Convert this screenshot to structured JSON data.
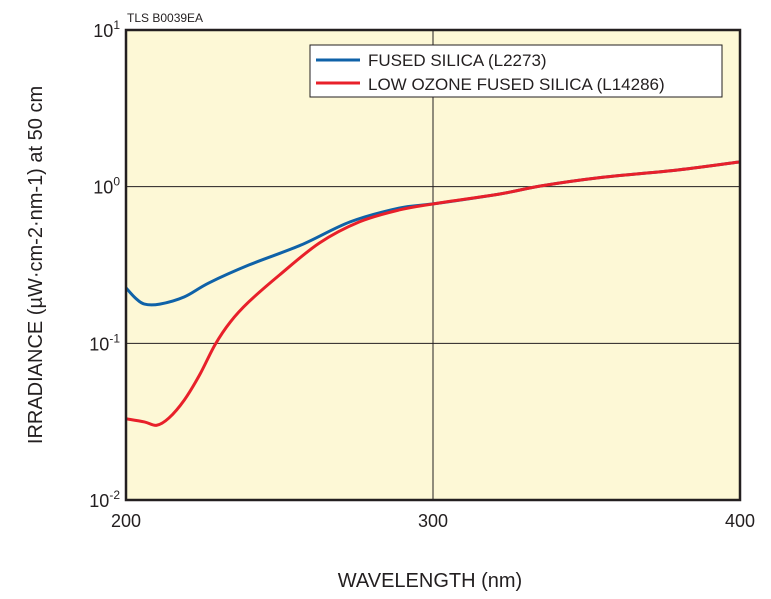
{
  "chart_data": {
    "type": "line",
    "code": "TLS B0039EA",
    "xlabel": "WAVELENGTH (nm)",
    "ylabel": "IRRADIANCE (µW·cm-2·nm-1) at 50 cm",
    "xlim": [
      200,
      400
    ],
    "ylim": [
      0.01,
      10
    ],
    "yscale": "log",
    "xticks": [
      "200",
      "300",
      "400"
    ],
    "yticks": [
      {
        "base": "10",
        "exp": "1",
        "value": 10
      },
      {
        "base": "10",
        "exp": "0",
        "value": 1
      },
      {
        "base": "10",
        "exp": "-1",
        "value": 0.1
      },
      {
        "base": "10",
        "exp": "-2",
        "value": 0.01
      }
    ],
    "grid": true,
    "legend_position": "top-right",
    "series": [
      {
        "name": "FUSED SILICA (L2273)",
        "color": "#0f62a8",
        "x": [
          200,
          203,
          206,
          211,
          219,
          227,
          240,
          257,
          273,
          289,
          300,
          322,
          335,
          354,
          380,
          400
        ],
        "y": [
          0.226,
          0.195,
          0.178,
          0.178,
          0.198,
          0.243,
          0.316,
          0.424,
          0.596,
          0.73,
          0.776,
          0.9,
          1.01,
          1.14,
          1.28,
          1.44
        ]
      },
      {
        "name": "LOW OZONE FUSED SILICA (L14286)",
        "color": "#e8202a",
        "x": [
          200,
          206,
          210,
          214,
          219,
          224,
          229,
          234,
          240,
          250,
          263,
          276,
          289,
          300,
          322,
          335,
          354,
          380,
          400
        ],
        "y": [
          0.033,
          0.0315,
          0.03,
          0.0334,
          0.0435,
          0.063,
          0.098,
          0.137,
          0.184,
          0.273,
          0.437,
          0.596,
          0.71,
          0.776,
          0.9,
          1.01,
          1.14,
          1.28,
          1.44
        ]
      }
    ]
  }
}
